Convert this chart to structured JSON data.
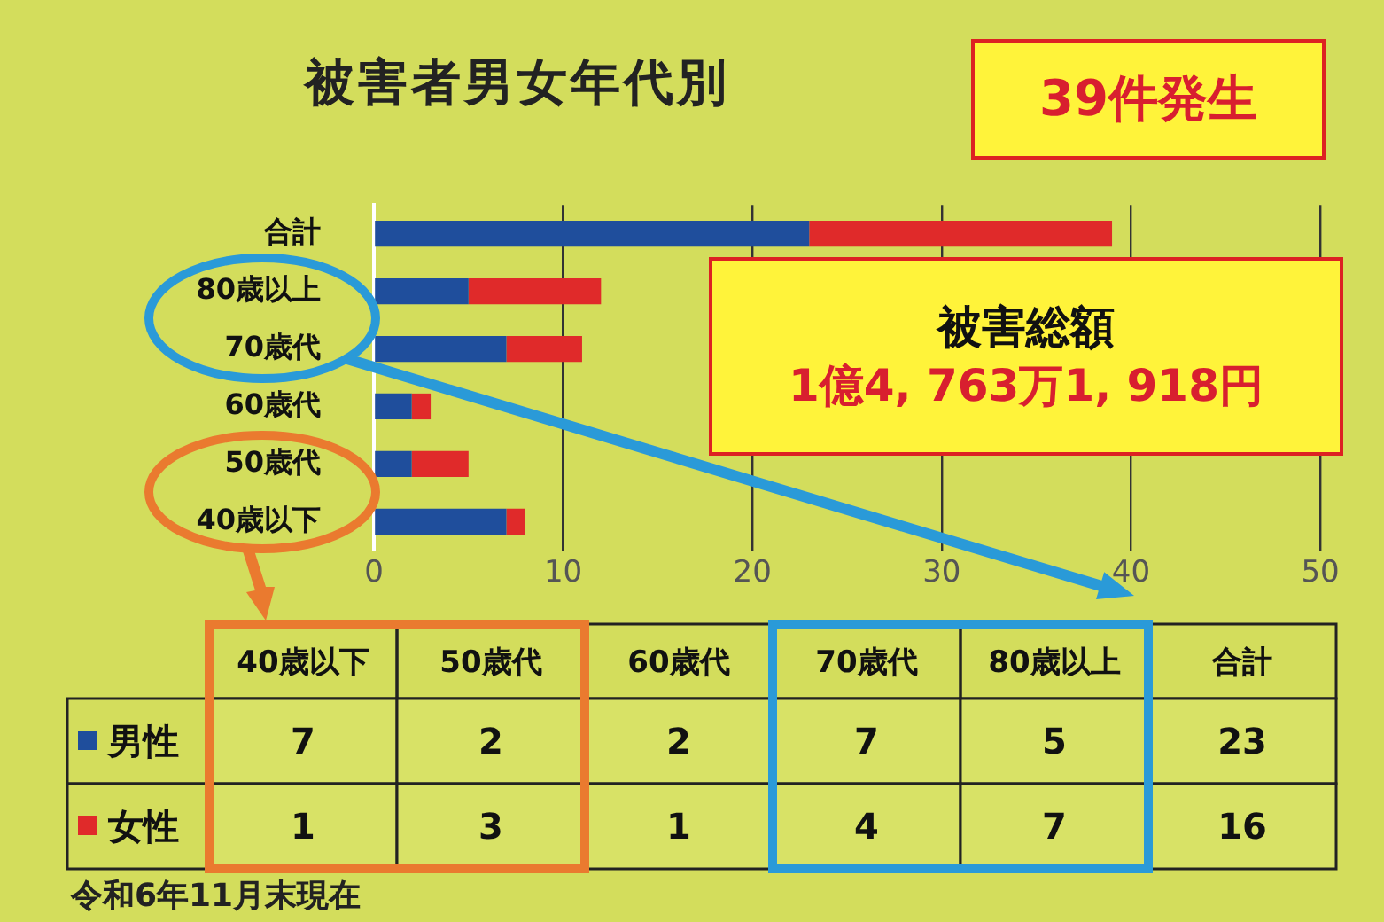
{
  "chart_data": [
    {
      "type": "bar",
      "orientation": "horizontal",
      "stacked": true,
      "title": "被害者男女年代別",
      "categories": [
        "合計",
        "80歳以上",
        "70歳代",
        "60歳代",
        "50歳代",
        "40歳以下"
      ],
      "series": [
        {
          "color": "#1f4e9c",
          "values": [
            23,
            5,
            7,
            2,
            2,
            7
          ]
        },
        {
          "color": "#e02a2a",
          "values": [
            16,
            7,
            4,
            1,
            3,
            1
          ]
        }
      ],
      "xlim": [
        0,
        50
      ],
      "xticks": [
        0,
        10,
        20,
        30,
        40,
        50
      ],
      "grid": "x",
      "annotations": [
        "39件発生",
        "被害総額",
        "1億4, 763万1, 918円",
        "令和6年11月末現在"
      ]
    },
    {
      "type": "heatmap",
      "categories": [
        "40歳以下",
        "50歳代",
        "60歳代",
        "70歳代",
        "80歳以上",
        "合計"
      ],
      "y_categories": [
        "男性",
        "女性"
      ],
      "data_labels": true,
      "cells": [
        [
          7,
          2,
          2,
          7,
          5,
          23
        ],
        [
          1,
          3,
          1,
          4,
          7,
          16
        ]
      ]
    }
  ]
}
